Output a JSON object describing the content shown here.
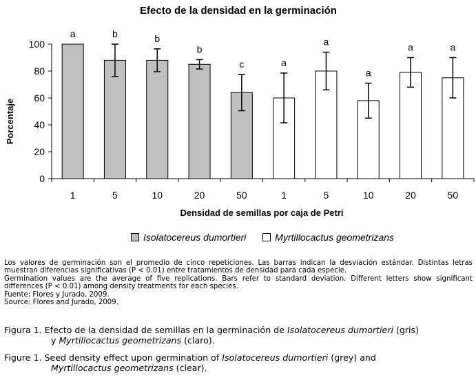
{
  "chart_data": {
    "type": "bar",
    "title": "Efecto de la densidad en la germinación",
    "xlabel": "Densidad de semillas por caja de Petri",
    "ylabel": "Porcentaje",
    "ylim": [
      0,
      100
    ],
    "yticks": [
      0,
      20,
      40,
      60,
      80,
      100
    ],
    "categories": [
      "1",
      "5",
      "10",
      "20",
      "50",
      "1",
      "5",
      "10",
      "20",
      "50"
    ],
    "values": [
      100,
      88,
      88,
      85,
      64,
      60,
      80,
      58,
      79,
      75
    ],
    "errors": [
      0,
      12,
      8.5,
      3.5,
      13.5,
      18.5,
      14,
      13,
      11,
      15
    ],
    "significance": [
      "a",
      "b",
      "b",
      "b",
      "c",
      "a",
      "a",
      "a",
      "a",
      "a"
    ],
    "series": [
      {
        "name": "Isolatocereus dumortieri",
        "color": "#c0c0c0",
        "indices": [
          0,
          1,
          2,
          3,
          4
        ]
      },
      {
        "name": "Myrtillocactus geometrizans",
        "color": "#ffffff",
        "indices": [
          5,
          6,
          7,
          8,
          9
        ]
      }
    ],
    "grid": false,
    "legend_position": "bottom"
  },
  "notes": [
    "Los valores de germinación son el promedio de cinco repeticiones. Las barras indican la desviación estándar. Distintas letras muestran diferencias significativas (P < 0.01) entre tratamientos de densidad para cada especie.",
    "Germination values are the average of five replications. Bars refer to standard deviation.  Different letters show significant differences (P < 0.01) among density treatments for each species.",
    "Fuente: Flores y Jurado, 2009.",
    "Source: Flores and Jurado, 2009."
  ],
  "caption_es": {
    "prefix": "Figura 1. Efecto de la densidad de semillas en la germinación de ",
    "species1": "Isolatocereus dumortieri",
    "mid": " (gris)",
    "connector": "y ",
    "species2": "Myrtillocactus geometrizans",
    "suffix": " (claro)."
  },
  "caption_en": {
    "prefix": "Figure 1. Seed density effect upon germination of ",
    "species1": "Isolatocereus dumortieri",
    "mid": " (grey) and",
    "species2": "Myrtillocactus geometrizans",
    "suffix": " (clear)."
  }
}
